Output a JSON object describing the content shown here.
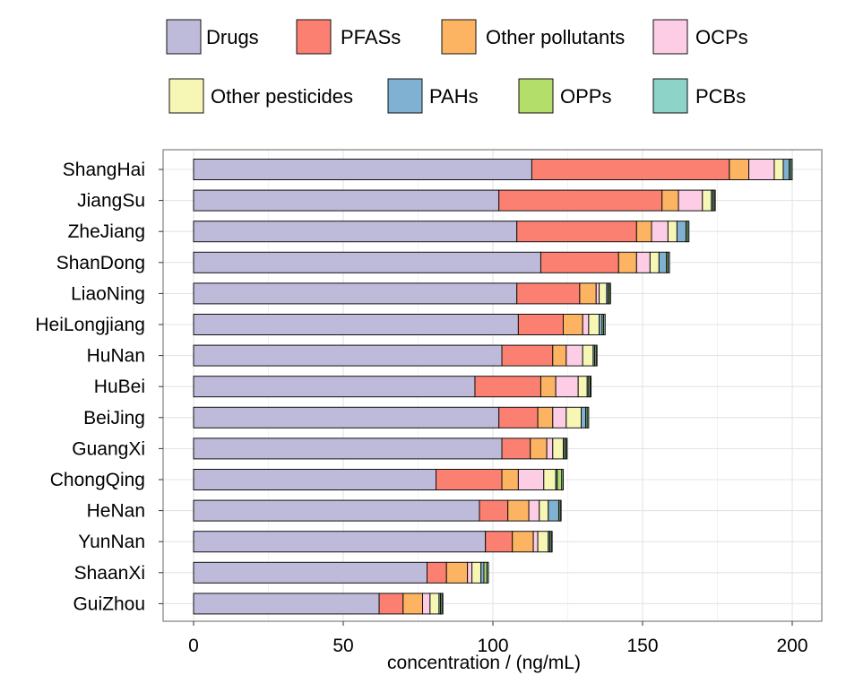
{
  "chart_data": {
    "type": "bar",
    "orientation": "horizontal",
    "stacked": true,
    "xlabel": "concentration / (ng/mL)",
    "ylabel": "",
    "xlim": [
      -8,
      210
    ],
    "xticks": [
      0,
      50,
      100,
      150,
      200
    ],
    "grid": true,
    "legend_position": "top",
    "categories": [
      "ShangHai",
      "JiangSu",
      "ZheJiang",
      "ShanDong",
      "LiaoNing",
      "HeiLongjiang",
      "HuNan",
      "HuBei",
      "BeiJing",
      "GuangXi",
      "ChongQing",
      "HeNan",
      "YunNan",
      "ShaanXi",
      "GuiZhou"
    ],
    "series": [
      {
        "name": "Drugs",
        "color": "#bebada",
        "values": [
          113,
          102,
          108,
          116,
          108,
          108.5,
          103,
          94,
          102,
          103,
          81,
          95.5,
          97.5,
          78,
          62
        ]
      },
      {
        "name": "PFASs",
        "color": "#fb8072",
        "values": [
          66,
          54.5,
          40,
          26,
          21,
          15,
          17,
          22,
          13,
          9.5,
          22,
          9.5,
          9,
          6.5,
          8
        ]
      },
      {
        "name": "Other pollutants",
        "color": "#fdb462",
        "values": [
          6.5,
          5.5,
          5,
          6,
          5.5,
          6.5,
          4.5,
          5,
          5,
          5.5,
          5.5,
          7,
          7,
          7,
          6.5
        ]
      },
      {
        "name": "OCPs",
        "color": "#fccde5",
        "values": [
          8.5,
          8,
          5.5,
          4.5,
          1,
          2,
          5.5,
          7.5,
          4.5,
          2,
          8.5,
          3.5,
          1.5,
          1.5,
          2.5
        ]
      },
      {
        "name": "Other pesticides",
        "color": "#f7f7b5",
        "values": [
          3,
          3,
          3,
          3,
          2.5,
          3.5,
          3.5,
          3,
          5,
          3.5,
          4,
          3,
          3.5,
          3,
          3
        ]
      },
      {
        "name": "PAHs",
        "color": "#80b1d3",
        "values": [
          2,
          0.5,
          3,
          2.5,
          0.5,
          1,
          0.5,
          0.5,
          1.5,
          0.5,
          0.5,
          3.5,
          0.5,
          1,
          0.5
        ]
      },
      {
        "name": "OPPs",
        "color": "#b3de69",
        "values": [
          0.5,
          0.5,
          0.5,
          0.5,
          0.5,
          0.5,
          0.5,
          0.5,
          0.5,
          0.5,
          1.5,
          0.5,
          0.5,
          1,
          0.5
        ]
      },
      {
        "name": "PCBs",
        "color": "#8dd3c7",
        "values": [
          0.5,
          0.3,
          0.5,
          0.5,
          0.3,
          0.5,
          0.3,
          0.3,
          0.5,
          0.3,
          0.5,
          0.3,
          0.3,
          0.5,
          0.3
        ]
      }
    ]
  }
}
